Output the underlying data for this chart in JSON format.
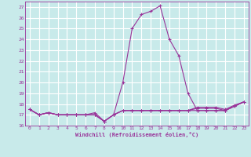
{
  "title": "",
  "xlabel": "Windchill (Refroidissement éolien,°C)",
  "xlim": [
    -0.5,
    23.5
  ],
  "ylim": [
    16,
    27.5
  ],
  "yticks": [
    16,
    17,
    18,
    19,
    20,
    21,
    22,
    23,
    24,
    25,
    26,
    27
  ],
  "xticks": [
    0,
    1,
    2,
    3,
    4,
    5,
    6,
    7,
    8,
    9,
    10,
    11,
    12,
    13,
    14,
    15,
    16,
    17,
    18,
    19,
    20,
    21,
    22,
    23
  ],
  "bg_color": "#c8eaea",
  "grid_color": "#ffffff",
  "line_color": "#993399",
  "series": {
    "temperature": [
      17.5,
      17.0,
      17.2,
      17.0,
      17.0,
      17.0,
      17.0,
      17.0,
      16.4,
      17.0,
      20.0,
      25.0,
      26.3,
      26.6,
      27.1,
      24.0,
      22.5,
      19.0,
      17.4,
      17.4,
      17.4,
      17.4,
      17.8,
      18.2
    ],
    "windchill1": [
      17.5,
      17.0,
      17.2,
      17.0,
      17.0,
      17.0,
      17.0,
      17.0,
      16.4,
      17.0,
      17.4,
      17.4,
      17.4,
      17.4,
      17.4,
      17.4,
      17.4,
      17.4,
      17.4,
      17.4,
      17.4,
      17.4,
      17.8,
      18.2
    ],
    "windchill2": [
      17.5,
      17.0,
      17.2,
      17.0,
      17.0,
      17.0,
      17.0,
      17.0,
      16.4,
      17.0,
      17.4,
      17.4,
      17.4,
      17.4,
      17.4,
      17.4,
      17.4,
      17.4,
      17.6,
      17.6,
      17.6,
      17.4,
      17.8,
      18.2
    ],
    "windchill3": [
      17.5,
      17.0,
      17.2,
      17.0,
      17.0,
      17.0,
      17.0,
      17.2,
      16.4,
      17.0,
      17.4,
      17.4,
      17.4,
      17.4,
      17.4,
      17.4,
      17.4,
      17.4,
      17.7,
      17.7,
      17.7,
      17.5,
      17.9,
      18.2
    ]
  }
}
